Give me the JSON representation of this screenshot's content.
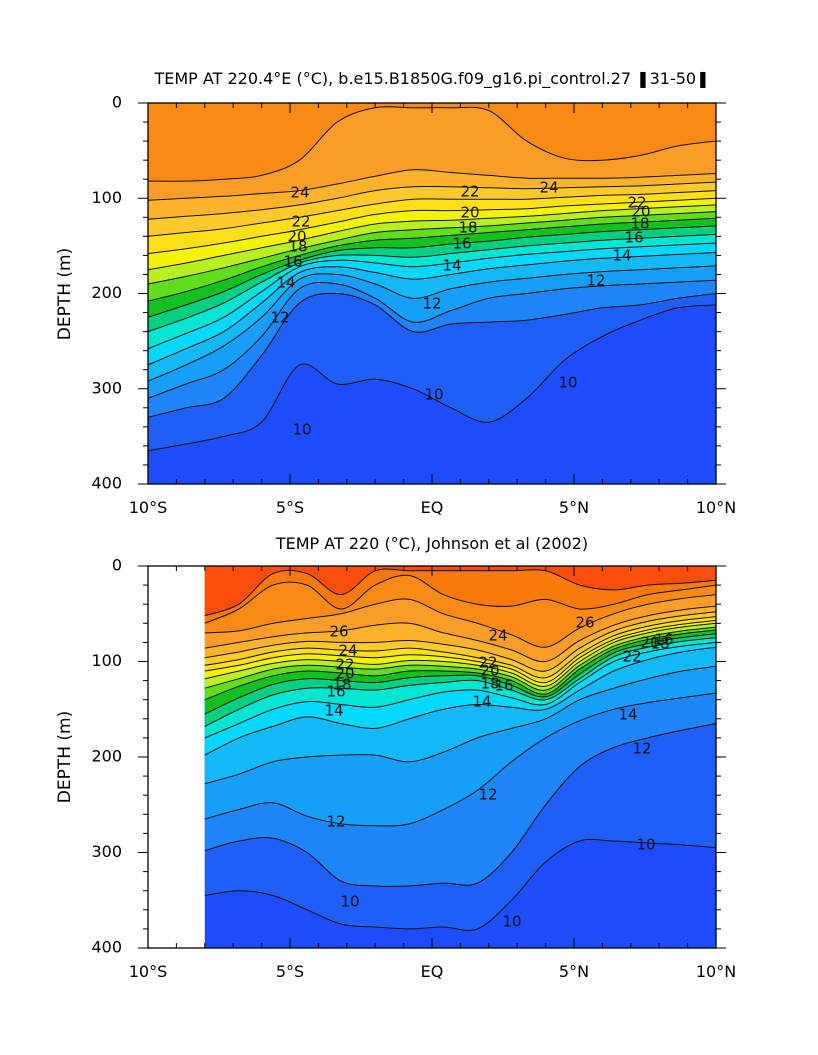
{
  "chart_data": [
    {
      "type": "contour",
      "title": "TEMP AT 220.4°E (°C), b.e15.B1850G.f09_g16.pi_control.27 ❚31-50❚",
      "ylabel": "DEPTH (m)",
      "xlabel": "",
      "x_ticks": [
        "10°S",
        "5°S",
        "EQ",
        "5°N",
        "10°N"
      ],
      "y_ticks": [
        "0",
        "100",
        "200",
        "300",
        "400"
      ],
      "xlim": [
        -10,
        10
      ],
      "ylim": [
        400,
        0
      ],
      "contour_interval": 1,
      "contour_labels": [
        "24",
        "24",
        "22",
        "22",
        "22",
        "20",
        "20",
        "20",
        "18",
        "18",
        "18",
        "16",
        "16",
        "16",
        "14",
        "14",
        "14",
        "12",
        "12",
        "12",
        "10",
        "10",
        "10"
      ],
      "isotherms": [
        {
          "t": 10,
          "depth": [
            365,
            358,
            350,
            335,
            275,
            295,
            290,
            300,
            320,
            335,
            310,
            270,
            245,
            228,
            215,
            212
          ]
        },
        {
          "t": 11,
          "depth": [
            330,
            320,
            310,
            265,
            210,
            200,
            212,
            240,
            232,
            230,
            228,
            222,
            215,
            212,
            205,
            200
          ]
        },
        {
          "t": 12,
          "depth": [
            310,
            295,
            280,
            245,
            195,
            190,
            205,
            230,
            218,
            205,
            200,
            195,
            192,
            190,
            188,
            186
          ]
        },
        {
          "t": 13,
          "depth": [
            292,
            275,
            255,
            225,
            185,
            180,
            190,
            205,
            195,
            188,
            184,
            180,
            177,
            175,
            173,
            171
          ]
        },
        {
          "t": 14,
          "depth": [
            275,
            258,
            240,
            210,
            178,
            172,
            178,
            185,
            180,
            174,
            170,
            166,
            163,
            161,
            159,
            157
          ]
        },
        {
          "t": 15,
          "depth": [
            258,
            242,
            225,
            198,
            172,
            165,
            168,
            172,
            168,
            163,
            159,
            156,
            153,
            151,
            149,
            147
          ]
        },
        {
          "t": 16,
          "depth": [
            240,
            226,
            210,
            188,
            168,
            160,
            160,
            162,
            158,
            154,
            150,
            147,
            144,
            142,
            140,
            138
          ]
        },
        {
          "t": 17,
          "depth": [
            225,
            212,
            198,
            180,
            165,
            155,
            152,
            152,
            148,
            145,
            141,
            138,
            135,
            133,
            131,
            129
          ]
        },
        {
          "t": 18,
          "depth": [
            208,
            198,
            186,
            172,
            160,
            150,
            144,
            142,
            139,
            136,
            133,
            130,
            127,
            125,
            123,
            121
          ]
        },
        {
          "t": 19,
          "depth": [
            190,
            182,
            173,
            163,
            153,
            144,
            136,
            133,
            131,
            129,
            126,
            123,
            120,
            118,
            116,
            114
          ]
        },
        {
          "t": 20,
          "depth": [
            175,
            168,
            160,
            152,
            144,
            135,
            127,
            124,
            123,
            121,
            119,
            116,
            113,
            111,
            109,
            107
          ]
        },
        {
          "t": 21,
          "depth": [
            158,
            153,
            147,
            140,
            133,
            125,
            117,
            113,
            113,
            112,
            111,
            108,
            106,
            104,
            102,
            100
          ]
        },
        {
          "t": 22,
          "depth": [
            140,
            136,
            132,
            126,
            120,
            113,
            106,
            101,
            101,
            101,
            101,
            99,
            97,
            96,
            94,
            92
          ]
        },
        {
          "t": 23,
          "depth": [
            122,
            119,
            116,
            112,
            107,
            100,
            92,
            88,
            88,
            89,
            90,
            89,
            88,
            87,
            85,
            83
          ]
        },
        {
          "t": 24,
          "depth": [
            102,
            100,
            98,
            95,
            92,
            85,
            77,
            70,
            73,
            76,
            79,
            79,
            79,
            78,
            76,
            74
          ]
        },
        {
          "t": 25,
          "depth": [
            82,
            82,
            80,
            76,
            60,
            20,
            5,
            5,
            5,
            8,
            40,
            58,
            60,
            55,
            45,
            40
          ]
        }
      ]
    },
    {
      "type": "contour",
      "title": "TEMP AT 220 (°C), Johnson et al (2002)",
      "ylabel": "DEPTH (m)",
      "xlabel": "",
      "x_ticks": [
        "10°S",
        "5°S",
        "EQ",
        "5°N",
        "10°N"
      ],
      "y_ticks": [
        "0",
        "100",
        "200",
        "300",
        "400"
      ],
      "xlim": [
        -10,
        10
      ],
      "ylim": [
        400,
        0
      ],
      "data_x_range": [
        -8,
        10
      ],
      "contour_interval": 1,
      "contour_labels": [
        "26",
        "26",
        "24",
        "24",
        "22",
        "22",
        "22",
        "20",
        "20",
        "20",
        "18",
        "18",
        "18",
        "16",
        "16",
        "16",
        "14",
        "14",
        "14",
        "12",
        "12",
        "12",
        "10",
        "10",
        "10"
      ],
      "isotherms": [
        {
          "t": 10,
          "depth": [
            345,
            340,
            345,
            360,
            375,
            378,
            380,
            378,
            380,
            350,
            310,
            288,
            288,
            290,
            292,
            295
          ]
        },
        {
          "t": 11,
          "depth": [
            298,
            288,
            285,
            300,
            330,
            335,
            335,
            332,
            332,
            300,
            250,
            210,
            190,
            180,
            172,
            165
          ]
        },
        {
          "t": 12,
          "depth": [
            265,
            255,
            248,
            262,
            270,
            272,
            270,
            255,
            235,
            205,
            180,
            162,
            150,
            143,
            138,
            133
          ]
        },
        {
          "t": 13,
          "depth": [
            228,
            218,
            205,
            200,
            198,
            198,
            205,
            195,
            180,
            170,
            160,
            140,
            128,
            118,
            110,
            105
          ]
        },
        {
          "t": 14,
          "depth": [
            198,
            180,
            168,
            158,
            165,
            170,
            160,
            150,
            145,
            148,
            150,
            130,
            110,
            98,
            90,
            85
          ]
        },
        {
          "t": 15,
          "depth": [
            180,
            165,
            150,
            142,
            145,
            148,
            140,
            132,
            130,
            138,
            145,
            122,
            100,
            90,
            84,
            80
          ]
        },
        {
          "t": 16,
          "depth": [
            168,
            150,
            135,
            128,
            128,
            130,
            125,
            122,
            120,
            130,
            140,
            118,
            95,
            85,
            79,
            75
          ]
        },
        {
          "t": 17,
          "depth": [
            155,
            138,
            124,
            118,
            120,
            122,
            117,
            115,
            115,
            125,
            137,
            113,
            91,
            81,
            75,
            71
          ]
        },
        {
          "t": 18,
          "depth": [
            140,
            126,
            115,
            110,
            112,
            115,
            110,
            110,
            112,
            120,
            134,
            108,
            87,
            77,
            71,
            67
          ]
        },
        {
          "t": 19,
          "depth": [
            128,
            118,
            108,
            104,
            106,
            108,
            104,
            105,
            108,
            116,
            130,
            104,
            84,
            74,
            68,
            64
          ]
        },
        {
          "t": 20,
          "depth": [
            118,
            110,
            102,
            98,
            100,
            103,
            99,
            100,
            104,
            112,
            126,
            100,
            80,
            70,
            64,
            60
          ]
        },
        {
          "t": 21,
          "depth": [
            110,
            104,
            96,
            92,
            94,
            96,
            93,
            95,
            100,
            108,
            122,
            96,
            77,
            67,
            61,
            57
          ]
        },
        {
          "t": 22,
          "depth": [
            104,
            98,
            90,
            86,
            88,
            89,
            86,
            90,
            96,
            104,
            117,
            92,
            73,
            63,
            57,
            53
          ]
        },
        {
          "t": 23,
          "depth": [
            96,
            90,
            83,
            79,
            80,
            80,
            78,
            82,
            88,
            98,
            110,
            86,
            68,
            58,
            52,
            48
          ]
        },
        {
          "t": 24,
          "depth": [
            86,
            80,
            74,
            70,
            68,
            62,
            60,
            70,
            78,
            88,
            100,
            78,
            62,
            52,
            46,
            42
          ]
        },
        {
          "t": 25,
          "depth": [
            70,
            68,
            60,
            55,
            50,
            40,
            35,
            50,
            60,
            72,
            85,
            65,
            50,
            40,
            34,
            30
          ]
        },
        {
          "t": 26,
          "depth": [
            60,
            45,
            20,
            20,
            45,
            20,
            10,
            30,
            40,
            42,
            35,
            45,
            40,
            30,
            25,
            20
          ]
        },
        {
          "t": 27,
          "depth": [
            52,
            40,
            8,
            8,
            30,
            5,
            5,
            5,
            5,
            5,
            5,
            20,
            25,
            20,
            18,
            15
          ]
        }
      ]
    }
  ]
}
